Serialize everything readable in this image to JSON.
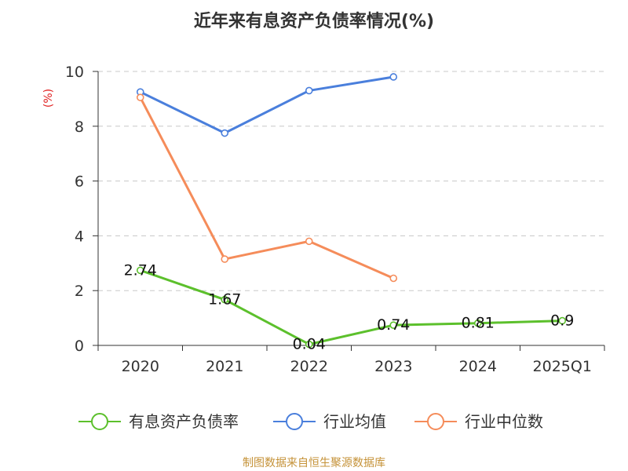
{
  "chart_data": {
    "type": "line",
    "title": "近年来有息资产负债率情况(%)",
    "ylabel": "(%)",
    "categories": [
      "2020",
      "2021",
      "2022",
      "2023",
      "2024",
      "2025Q1"
    ],
    "ylim": [
      0,
      10
    ],
    "yticks": [
      0,
      2,
      4,
      6,
      8,
      10
    ],
    "grid": true,
    "legend_position": "bottom",
    "series": [
      {
        "name": "有息资产负债率",
        "color": "#5cc02c",
        "values": [
          2.74,
          1.67,
          0.04,
          0.74,
          0.81,
          0.9
        ],
        "labels": [
          "2.74",
          "1.67",
          "0.04",
          "0.74",
          "0.81",
          "0.9"
        ]
      },
      {
        "name": "行业均值",
        "color": "#4a7fdc",
        "values": [
          9.25,
          7.75,
          9.3,
          9.8,
          null,
          null
        ]
      },
      {
        "name": "行业中位数",
        "color": "#f58c5a",
        "values": [
          9.05,
          3.15,
          3.8,
          2.45,
          null,
          null
        ]
      }
    ]
  },
  "colors": {
    "ylabel": "#e02020",
    "source": "#c59238",
    "axis": "#333333",
    "grid": "#c8c8c8"
  },
  "source": "制图数据来自恒生聚源数据库"
}
